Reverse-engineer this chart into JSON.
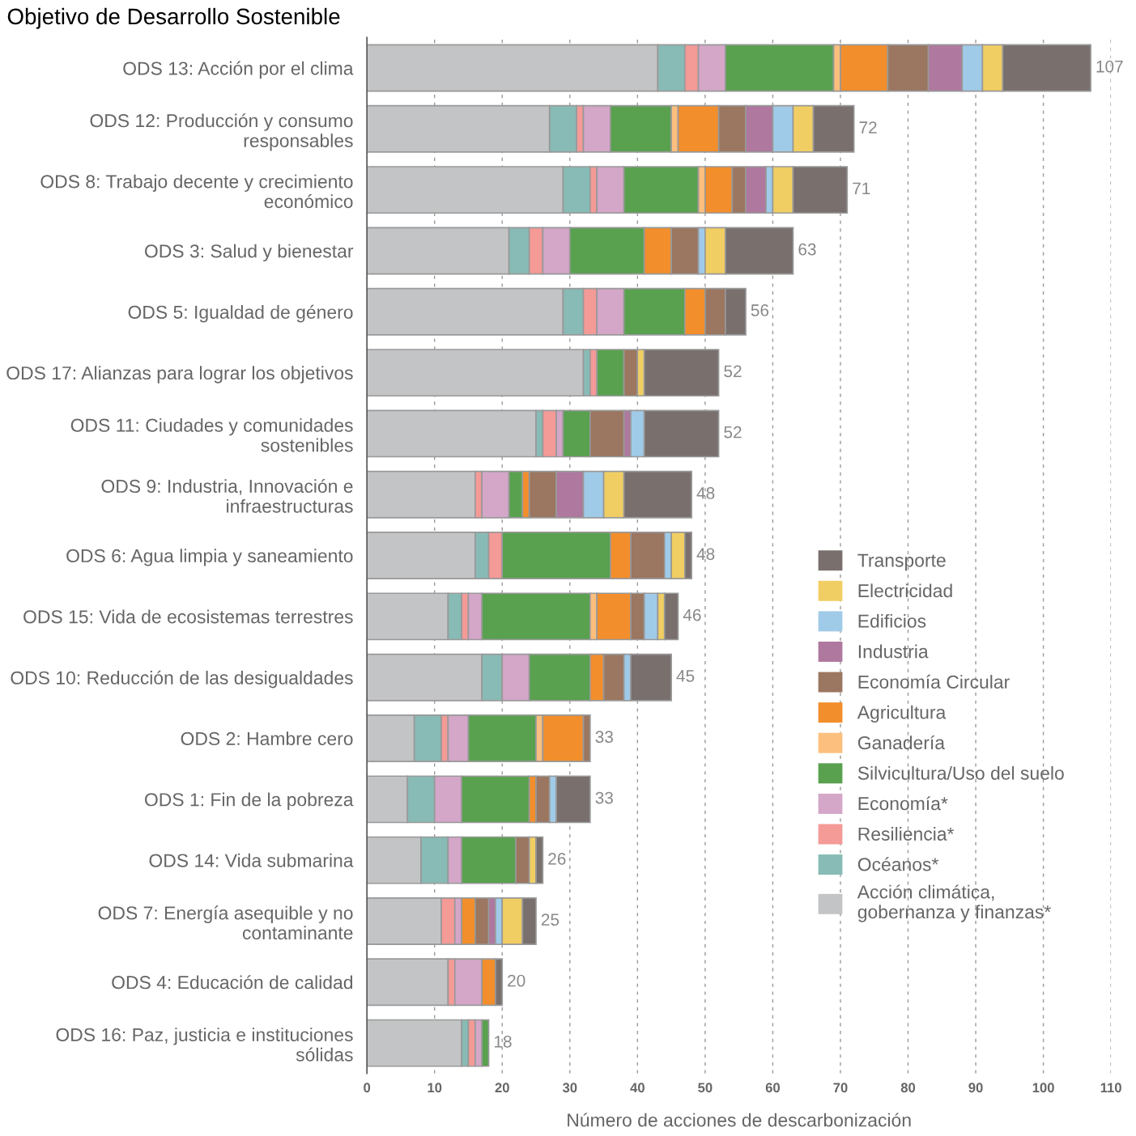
{
  "chart_data": {
    "type": "bar",
    "orientation": "horizontal",
    "stacked": true,
    "title": "Objetivo de Desarrollo Sostenible",
    "xlabel": "Número de acciones de descarbonización",
    "categories": [
      "ODS 13: Acción por el clima",
      "ODS 12: Producción y consumo\nresponsables",
      "ODS 8: Trabajo decente y crecimiento\neconómico",
      "ODS 3: Salud y bienestar",
      "ODS 5: Igualdad de género",
      "ODS 17: Alianzas para lograr los objetivos",
      "ODS 11: Ciudades y comunidades\nsostenibles",
      "ODS 9: Industria, Innovación e\ninfraestructuras",
      "ODS 6: Agua limpia y saneamiento",
      "ODS 15: Vida de ecosistemas terrestres",
      "ODS 10: Reducción de las desigualdades",
      "ODS 2: Hambre cero",
      "ODS 1: Fin de la pobreza",
      "ODS 14: Vida submarina",
      "ODS 7: Energía asequible y no\ncontaminante",
      "ODS 4: Educación de calidad",
      "ODS 16: Paz, justicia e instituciones\nsólidas"
    ],
    "series": [
      {
        "name": "Acción climática,\ngobernanza y finanzas*",
        "color": "#c3c4c6",
        "values": [
          43,
          27,
          29,
          21,
          29,
          32,
          25,
          16,
          16,
          12,
          17,
          7,
          6,
          8,
          11,
          12,
          14
        ]
      },
      {
        "name": "Océanos*",
        "color": "#88bbb5",
        "values": [
          4,
          4,
          4,
          3,
          3,
          1,
          1,
          0,
          2,
          2,
          3,
          4,
          4,
          4,
          0,
          0,
          1
        ]
      },
      {
        "name": "Resiliencia*",
        "color": "#f49a97",
        "values": [
          2,
          1,
          1,
          2,
          2,
          1,
          2,
          1,
          2,
          1,
          0,
          1,
          0,
          0,
          2,
          1,
          1
        ]
      },
      {
        "name": "Economía*",
        "color": "#d4a6c8",
        "values": [
          4,
          4,
          4,
          4,
          4,
          0,
          1,
          4,
          0,
          2,
          4,
          3,
          4,
          2,
          1,
          4,
          1
        ]
      },
      {
        "name": "Silvicultura/Uso del suelo",
        "color": "#59a14f",
        "values": [
          16,
          9,
          11,
          11,
          9,
          4,
          4,
          2,
          16,
          16,
          9,
          10,
          10,
          8,
          0,
          0,
          1
        ]
      },
      {
        "name": "Ganadería",
        "color": "#fdbf7e",
        "values": [
          1,
          1,
          1,
          0,
          0,
          0,
          0,
          0,
          0,
          1,
          0,
          1,
          0,
          0,
          0,
          0,
          0
        ]
      },
      {
        "name": "Agricultura",
        "color": "#f28e2b",
        "values": [
          7,
          6,
          4,
          4,
          3,
          0,
          0,
          1,
          3,
          5,
          2,
          6,
          1,
          0,
          2,
          2,
          0
        ]
      },
      {
        "name": "Economía Circular",
        "color": "#9b7660",
        "values": [
          6,
          4,
          2,
          4,
          3,
          2,
          5,
          4,
          5,
          2,
          3,
          1,
          2,
          2,
          2,
          0,
          0
        ]
      },
      {
        "name": "Industria",
        "color": "#ae789f",
        "values": [
          5,
          4,
          3,
          0,
          0,
          0,
          1,
          4,
          0,
          0,
          0,
          0,
          0,
          0,
          1,
          0,
          0
        ]
      },
      {
        "name": "Edificios",
        "color": "#a0cbe8",
        "values": [
          3,
          3,
          1,
          1,
          0,
          0,
          2,
          3,
          1,
          2,
          1,
          0,
          1,
          0,
          1,
          0,
          0
        ]
      },
      {
        "name": "Electricidad",
        "color": "#f1ce63",
        "values": [
          3,
          3,
          3,
          3,
          0,
          1,
          0,
          3,
          2,
          1,
          0,
          0,
          0,
          1,
          3,
          0,
          0
        ]
      },
      {
        "name": "Transporte",
        "color": "#79706e",
        "values": [
          13,
          6,
          8,
          10,
          3,
          11,
          11,
          10,
          1,
          2,
          6,
          0,
          5,
          1,
          2,
          1,
          0
        ]
      }
    ],
    "totals": [
      "107",
      "72",
      "71",
      "63",
      "56",
      "52",
      "52",
      "48",
      "48",
      "46",
      "45",
      "33",
      "33",
      "26",
      "25",
      "20",
      "18"
    ],
    "xlim": [
      0,
      110
    ],
    "xticks": [
      0,
      10,
      20,
      30,
      40,
      50,
      60,
      70,
      80,
      90,
      100,
      110
    ],
    "grid": "x",
    "legend": "bottom right"
  }
}
